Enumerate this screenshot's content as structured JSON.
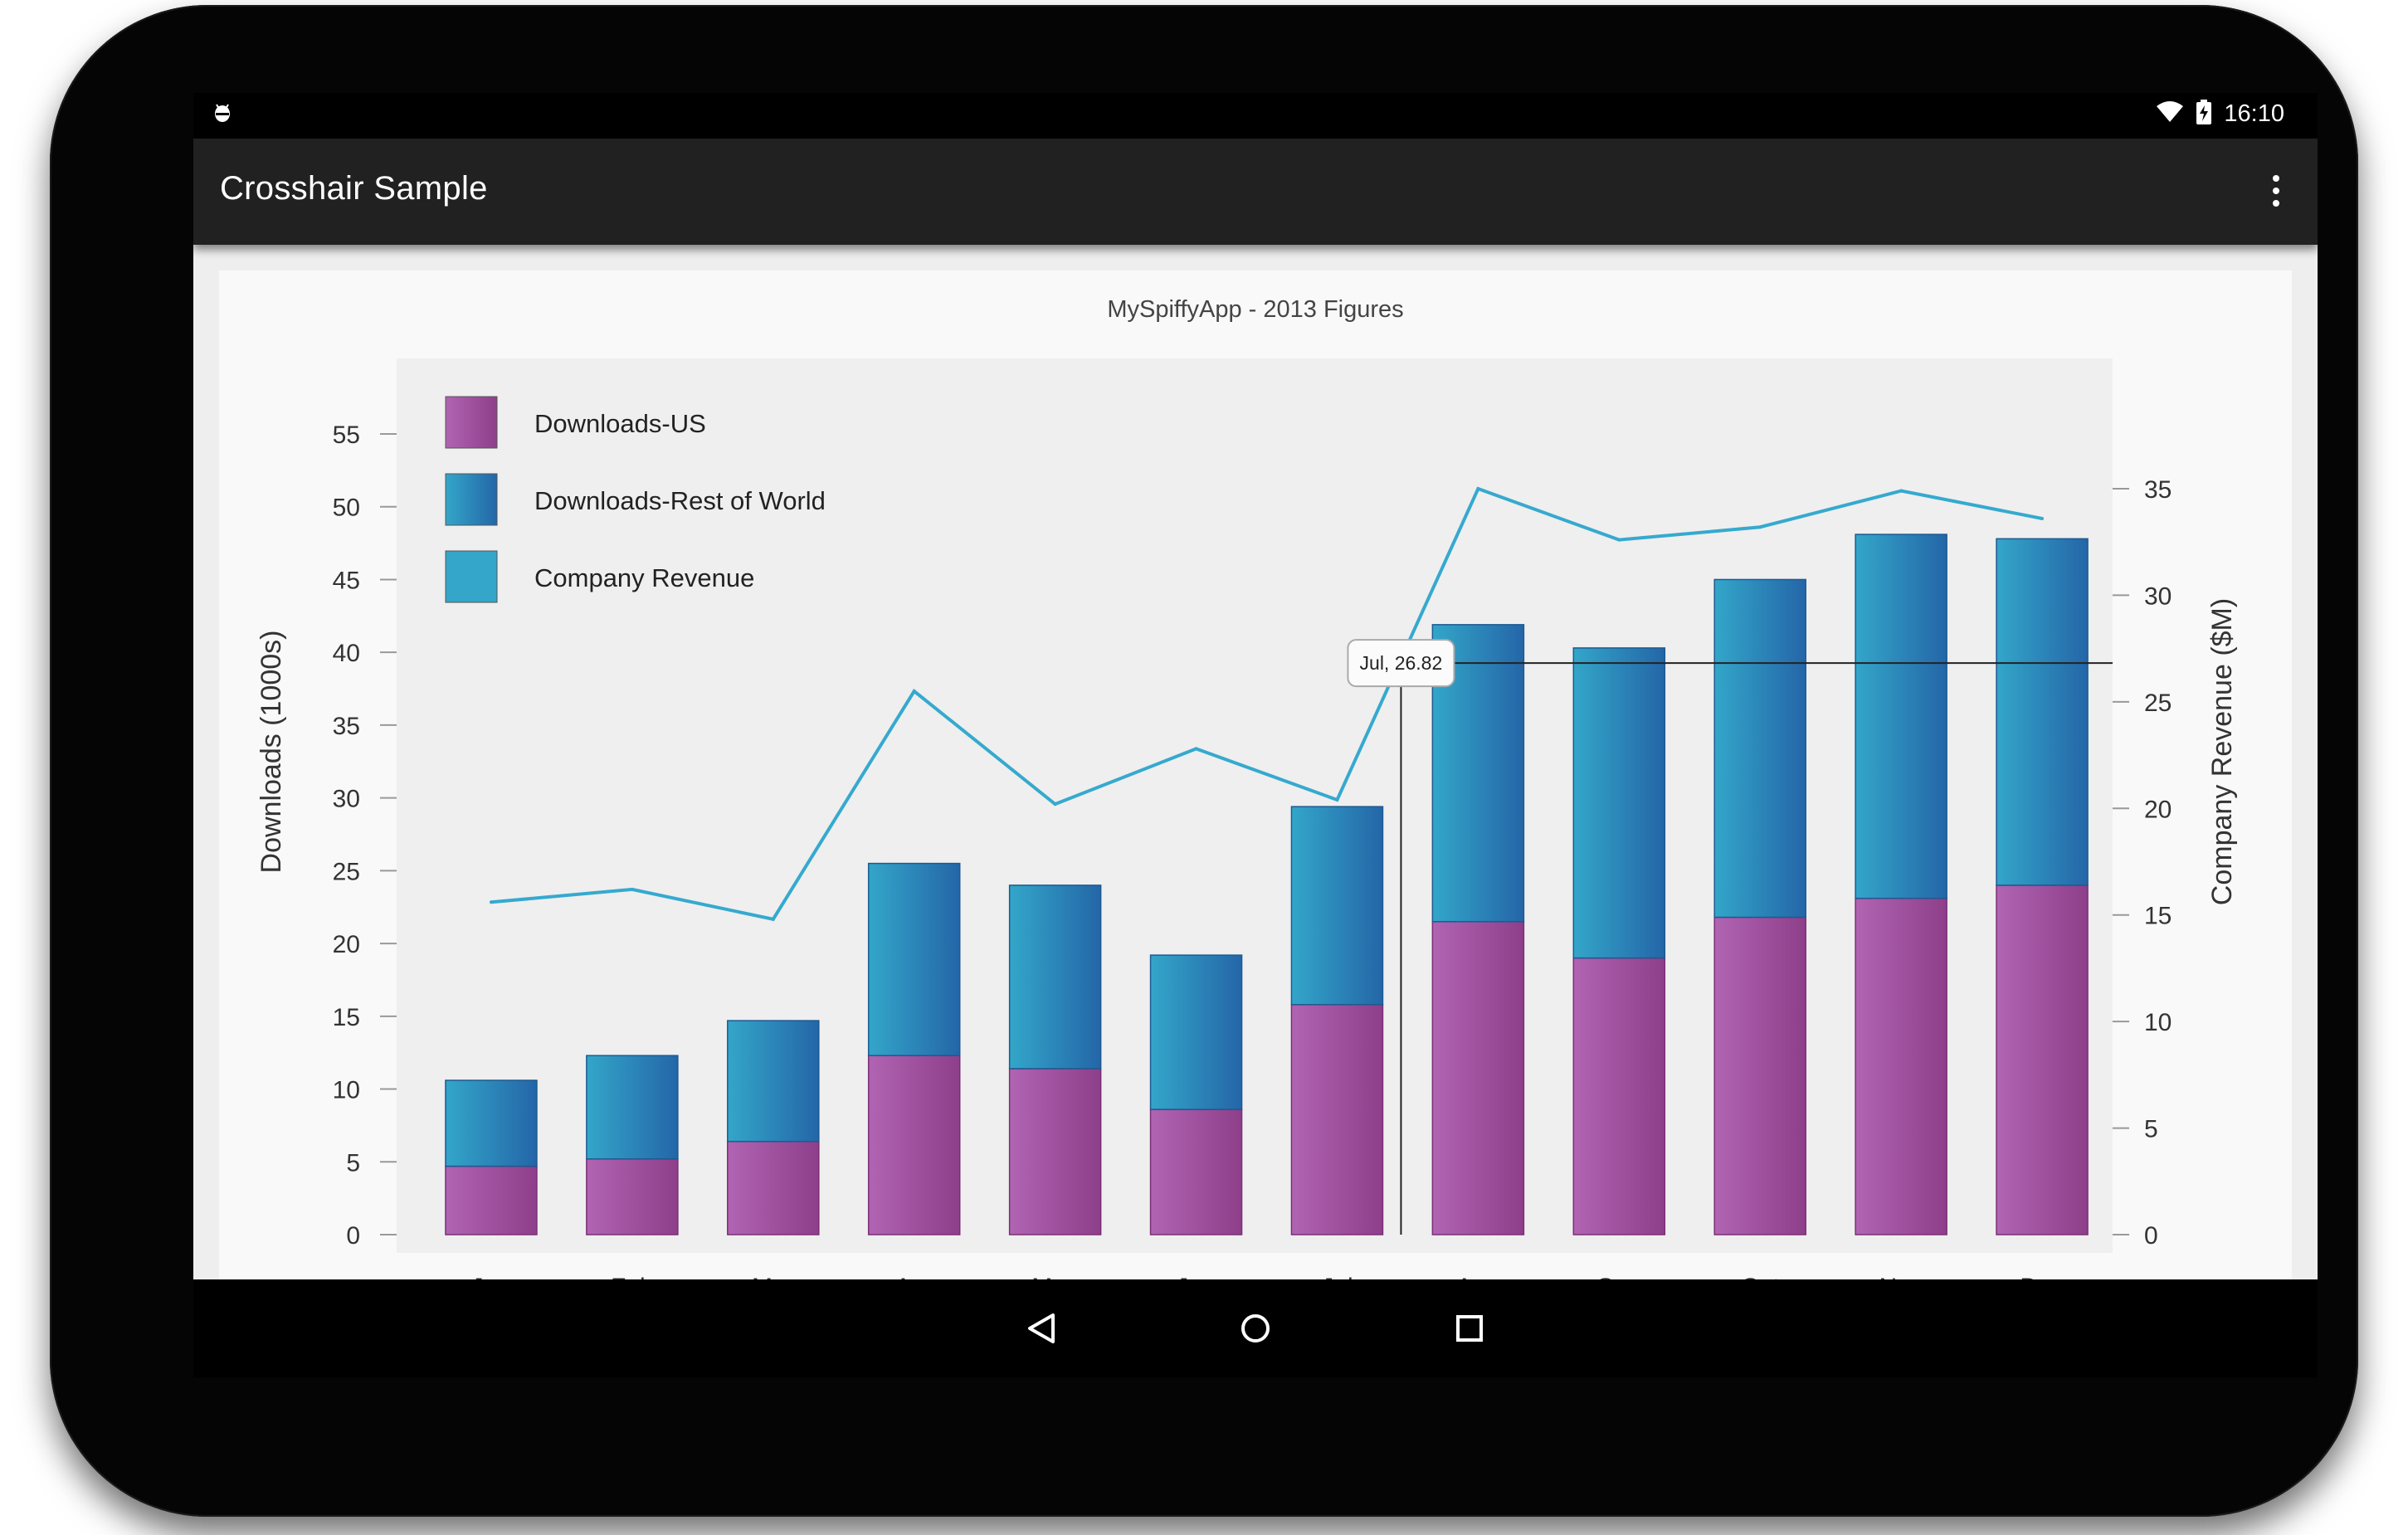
{
  "status_bar": {
    "time": "16:10",
    "left_icon": "android-debug-icon",
    "wifi_icon": "wifi-icon",
    "battery_icon": "battery-charging-icon"
  },
  "action_bar": {
    "title": "Crosshair Sample",
    "overflow_icon": "more-vert-icon"
  },
  "nav_bar": {
    "back_icon": "back-triangle-icon",
    "home_icon": "home-circle-icon",
    "recents_icon": "recents-square-icon"
  },
  "colors": {
    "us_dark": "#8e3f8a",
    "us_light": "#b064b2",
    "row_dark": "#2466a8",
    "row_light": "#33a6c9",
    "revenue_line": "#36a9cf",
    "plot_bg": "#efefef",
    "card_bg": "#f9f9f9"
  },
  "crosshair": {
    "label": "Jul, 26.82",
    "category": "Jul",
    "value": 26.82
  },
  "chart_data": {
    "type": "bar",
    "stacked": true,
    "title": "MySpiffyApp - 2013 Figures",
    "categories": [
      "Jan",
      "Feb",
      "Mar",
      "Apr",
      "May",
      "Jun",
      "Jul",
      "Aug",
      "Sep",
      "Oct",
      "Nov",
      "Dec"
    ],
    "series": [
      {
        "name": "Downloads-US",
        "type": "bar",
        "axis": "left",
        "color": "#b064b2",
        "values": [
          4.7,
          5.2,
          6.4,
          12.3,
          11.4,
          8.6,
          15.8,
          21.5,
          19.0,
          21.8,
          23.1,
          24.0
        ]
      },
      {
        "name": "Downloads-Rest of World",
        "type": "bar",
        "axis": "left",
        "color": "#33a6c9",
        "values": [
          5.9,
          7.1,
          8.3,
          13.2,
          12.6,
          10.6,
          13.6,
          20.4,
          21.3,
          23.2,
          25.0,
          23.8
        ]
      },
      {
        "name": "Company Revenue",
        "type": "line",
        "axis": "right",
        "color": "#36a9cf",
        "values": [
          15.6,
          16.2,
          14.8,
          25.5,
          20.2,
          22.8,
          20.4,
          35.0,
          32.6,
          33.2,
          34.9,
          33.6
        ]
      }
    ],
    "ylabel": "Downloads (1000s)",
    "y2label": "Company Revenue ($M)",
    "ylim": [
      0,
      55
    ],
    "y2lim": [
      0,
      35
    ],
    "yticks": [
      "0",
      "5",
      "10",
      "15",
      "20",
      "25",
      "30",
      "35",
      "40",
      "45",
      "50",
      "55"
    ],
    "y2ticks": [
      "0",
      "5",
      "10",
      "15",
      "20",
      "25",
      "30",
      "35"
    ],
    "legend_position": "top-left",
    "grid": false
  }
}
